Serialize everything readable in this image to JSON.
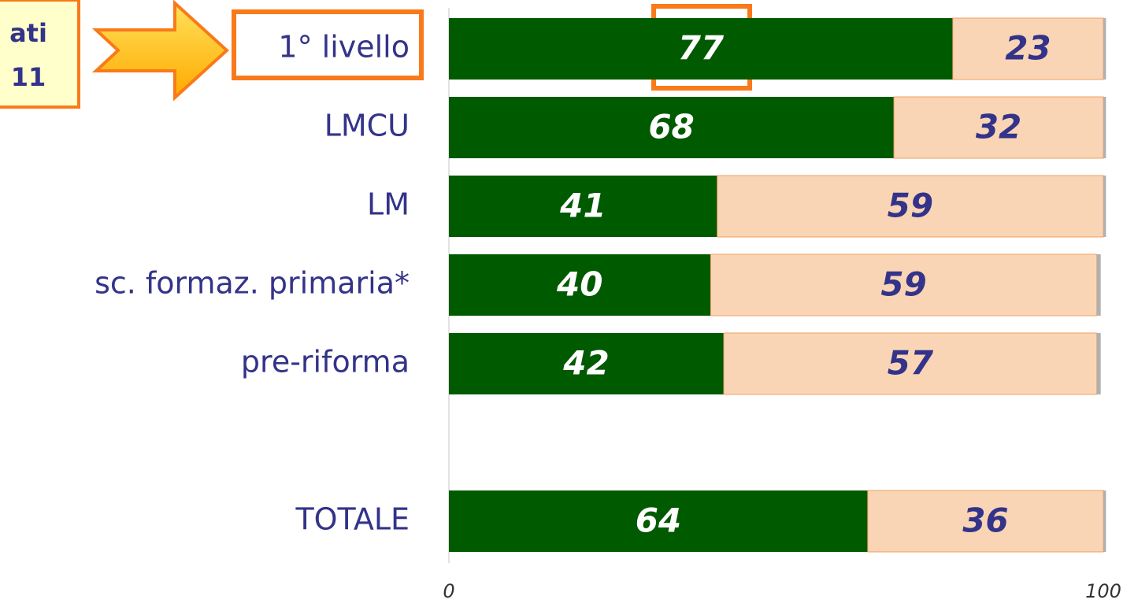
{
  "chart_data": {
    "type": "stacked-barh",
    "categories": [
      "1° livello",
      "LMCU",
      "LM",
      "sc. formaz. primaria*",
      "pre-riforma",
      null,
      "TOTALE"
    ],
    "series": [
      {
        "color": "#005a00",
        "values": [
          77,
          68,
          41,
          40,
          42,
          null,
          64
        ]
      },
      {
        "color": "#fad5b5",
        "values": [
          23,
          32,
          59,
          59,
          57,
          null,
          36
        ]
      },
      {
        "color": "#b0b0b0",
        "values": [
          0.4,
          0.4,
          0.4,
          0.6,
          0.6,
          null,
          0.4
        ]
      }
    ],
    "xlim": [
      0,
      100
    ],
    "xticks": [
      0,
      100
    ],
    "annotations": [
      "ati",
      "11"
    ]
  }
}
